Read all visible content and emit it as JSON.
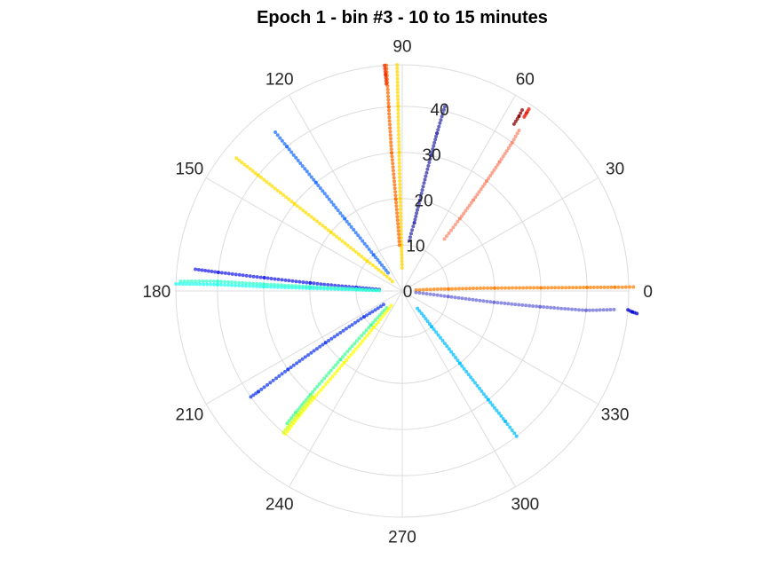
{
  "chart_data": {
    "type": "scatter",
    "projection": "polar",
    "title": "Epoch 1 - bin #3 - 10 to 15 minutes",
    "r_lim": [
      0,
      49
    ],
    "r_ticks": [
      0,
      10,
      20,
      30,
      40
    ],
    "r_tick_labels": [
      "0",
      "10",
      "20",
      "30",
      "40"
    ],
    "theta_ticks": [
      0,
      30,
      60,
      90,
      120,
      150,
      180,
      210,
      240,
      270,
      300,
      330
    ],
    "theta_tick_labels": [
      "0",
      "30",
      "60",
      "90",
      "120",
      "150",
      "180",
      "210",
      "240",
      "270",
      "300",
      "330"
    ],
    "grid": true,
    "series": [
      {
        "color": "#8b0000",
        "points": [
          [
            47,
            56.5
          ],
          [
            45.5,
            56.3
          ],
          [
            43.5,
            56.2
          ]
        ]
      },
      {
        "color": "#e81e0e",
        "points": [
          [
            48,
            55.2
          ],
          [
            47,
            55.1
          ],
          [
            46,
            55
          ]
        ]
      },
      {
        "color": "#fa8a6e",
        "points": [
          [
            14.5,
            51
          ],
          [
            20,
            51.5
          ],
          [
            25,
            52
          ],
          [
            30,
            52.5
          ],
          [
            35,
            53
          ],
          [
            40,
            53.5
          ],
          [
            43,
            54
          ]
        ]
      },
      {
        "color": "#ff7f00",
        "points": [
          [
            3,
            4
          ],
          [
            10,
            2.5
          ],
          [
            20,
            1.8
          ],
          [
            30,
            1.3
          ],
          [
            40,
            1.1
          ],
          [
            46,
            1.0
          ],
          [
            50,
            1.0
          ]
        ]
      },
      {
        "color": "#0000cd",
        "points": [
          [
            49,
            355.2
          ],
          [
            50,
            354.8
          ],
          [
            51,
            354.5
          ]
        ]
      },
      {
        "color": "#6a6ad8",
        "points": [
          [
            3,
            354
          ],
          [
            10,
            353
          ],
          [
            20,
            353
          ],
          [
            30,
            353.5
          ],
          [
            40,
            354
          ],
          [
            46,
            355
          ]
        ]
      },
      {
        "color": "#00bfff",
        "points": [
          [
            5,
            311
          ],
          [
            10,
            309.5
          ],
          [
            20,
            308.5
          ],
          [
            30,
            308.3
          ],
          [
            36,
            308.3
          ],
          [
            40,
            308.2
          ]
        ]
      },
      {
        "color": "#3333aa",
        "points": [
          [
            11,
            82
          ],
          [
            15,
            80
          ],
          [
            20,
            79
          ],
          [
            30,
            78
          ],
          [
            35,
            77.6
          ],
          [
            41,
            77
          ]
        ]
      },
      {
        "color": "#ffd700",
        "points": [
          [
            5,
            90.5
          ],
          [
            10,
            91.1
          ],
          [
            20,
            91.3
          ],
          [
            30,
            91.3
          ],
          [
            40,
            91.3
          ],
          [
            49,
            91.3
          ]
        ]
      },
      {
        "color": "#ff6a00",
        "points": [
          [
            10,
            93.5
          ],
          [
            20,
            94
          ],
          [
            30,
            94.4
          ],
          [
            40,
            94.2
          ],
          [
            49,
            94.0
          ]
        ]
      },
      {
        "color": "#ee2a00",
        "points": [
          [
            45,
            94.4
          ],
          [
            47,
            94.4
          ],
          [
            49,
            94.5
          ]
        ]
      },
      {
        "color": "#1e6fff",
        "points": [
          [
            5,
            128
          ],
          [
            10,
            128.4
          ],
          [
            20,
            128.5
          ],
          [
            30,
            128.5
          ],
          [
            40,
            128.6
          ],
          [
            44,
            128.6
          ]
        ]
      },
      {
        "color": "#ffdd00",
        "points": [
          [
            3,
            136
          ],
          [
            10,
            139.5
          ],
          [
            20,
            140.5
          ],
          [
            30,
            141
          ],
          [
            40,
            141.2
          ],
          [
            46,
            141.3
          ]
        ]
      },
      {
        "color": "#2020ee",
        "points": [
          [
            5,
            176
          ],
          [
            10,
            175.5
          ],
          [
            20,
            175
          ],
          [
            30,
            174.5
          ],
          [
            40,
            174.2
          ],
          [
            45,
            174
          ]
        ]
      },
      {
        "color": "#22ffee",
        "points": [
          [
            5,
            179
          ],
          [
            10,
            178.5
          ],
          [
            20,
            178.3
          ],
          [
            30,
            178.2
          ],
          [
            40,
            178
          ],
          [
            49,
            178.2
          ]
        ]
      },
      {
        "color": "#33ffcc",
        "points": [
          [
            5,
            178.5
          ],
          [
            10,
            177.5
          ],
          [
            20,
            177.3
          ],
          [
            30,
            177.2
          ],
          [
            40,
            177
          ],
          [
            48,
            177.5
          ]
        ]
      },
      {
        "color": "#1a3cee",
        "points": [
          [
            5,
            216
          ],
          [
            10,
            214
          ],
          [
            20,
            214
          ],
          [
            30,
            214.5
          ],
          [
            38,
            215
          ],
          [
            40,
            215
          ]
        ]
      },
      {
        "color": "#44ff99",
        "points": [
          [
            5,
            227
          ],
          [
            10,
            227.5
          ],
          [
            20,
            228
          ],
          [
            30,
            228.5
          ],
          [
            35,
            228.8
          ],
          [
            38,
            229
          ]
        ]
      },
      {
        "color": "#ffff00",
        "points": [
          [
            4,
            233
          ],
          [
            10,
            232
          ],
          [
            20,
            231
          ],
          [
            30,
            230.5
          ],
          [
            35,
            230.5
          ],
          [
            40,
            230.8
          ]
        ]
      },
      {
        "color": "#cfff22",
        "points": [
          [
            30,
            229.5
          ],
          [
            35,
            229.8
          ],
          [
            40,
            230
          ]
        ]
      }
    ]
  }
}
